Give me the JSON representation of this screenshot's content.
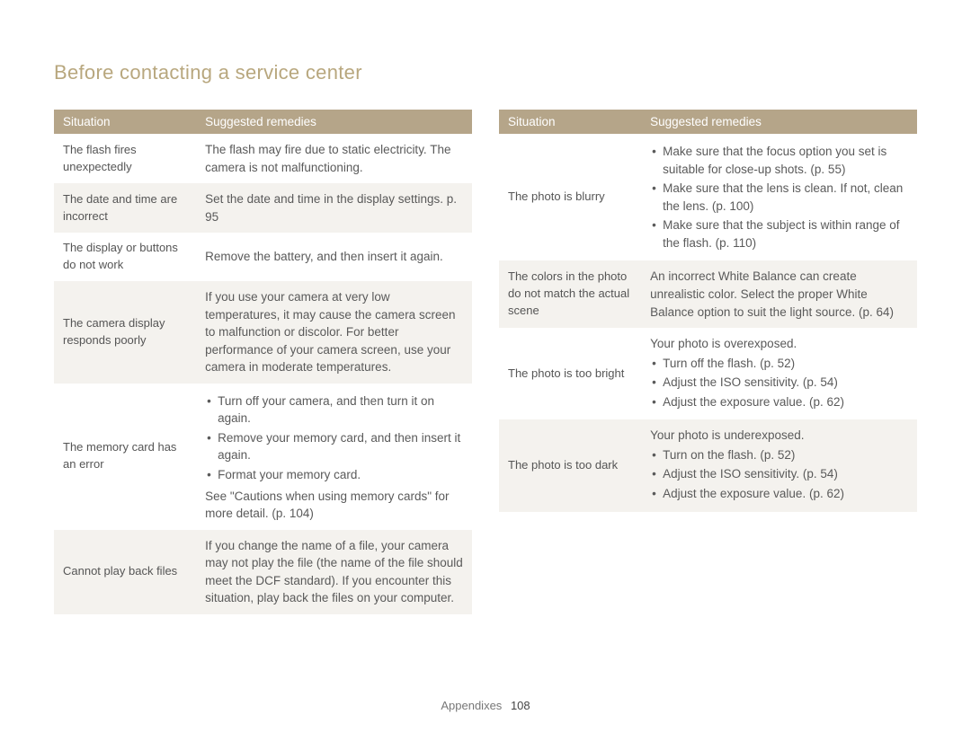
{
  "title": "Before contacting a service center",
  "footer_label": "Appendixes",
  "page_number": "108",
  "header_situation": "Situation",
  "header_remedies": "Suggested remedies",
  "left": [
    {
      "sit": "The flash fires unexpectedly",
      "rem_text": "The flash may fire due to static electricity. The camera is not malfunctioning."
    },
    {
      "sit": "The date and time are incorrect",
      "rem_text": "Set the date and time in the display settings. p. 95"
    },
    {
      "sit": "The display or buttons do not work",
      "rem_text": "Remove the battery, and then insert it again."
    },
    {
      "sit": "The camera display responds poorly",
      "rem_text": "If you use your camera at very low temperatures, it may cause the camera screen to malfunction or discolor. For better performance of your camera screen, use your camera in moderate temperatures."
    },
    {
      "sit": "The memory card has an error",
      "rem_list": [
        "Turn off your camera, and then turn it on again.",
        "Remove your memory card, and then insert it again.",
        "Format your memory card."
      ],
      "rem_post": "See \"Cautions when using memory cards\" for more detail. (p. 104)"
    },
    {
      "sit": "Cannot play back files",
      "rem_text": "If you change the name of a file, your camera may not play the file (the name of the file should meet the DCF standard). If you encounter this situation, play back the files on your computer."
    }
  ],
  "right": [
    {
      "sit": "The photo is blurry",
      "rem_list": [
        "Make sure that the focus option you set is suitable for close-up shots. (p. 55)",
        "Make sure that the lens is clean. If not, clean the lens. (p. 100)",
        "Make sure that the subject is within range of the flash. (p. 110)"
      ]
    },
    {
      "sit": "The colors in the photo do not match the actual scene",
      "rem_text": "An incorrect White Balance can create unrealistic color. Select the proper White Balance option to suit the light source. (p. 64)"
    },
    {
      "sit": "The photo is too bright",
      "rem_pre": "Your photo is overexposed.",
      "rem_list": [
        "Turn off the flash. (p. 52)",
        "Adjust the ISO sensitivity. (p. 54)",
        "Adjust the exposure value. (p. 62)"
      ]
    },
    {
      "sit": "The photo is too dark",
      "rem_pre": "Your photo is underexposed.",
      "rem_list": [
        "Turn on the flash. (p. 52)",
        "Adjust the ISO sensitivity. (p. 54)",
        "Adjust the exposure value. (p. 62)"
      ]
    }
  ]
}
